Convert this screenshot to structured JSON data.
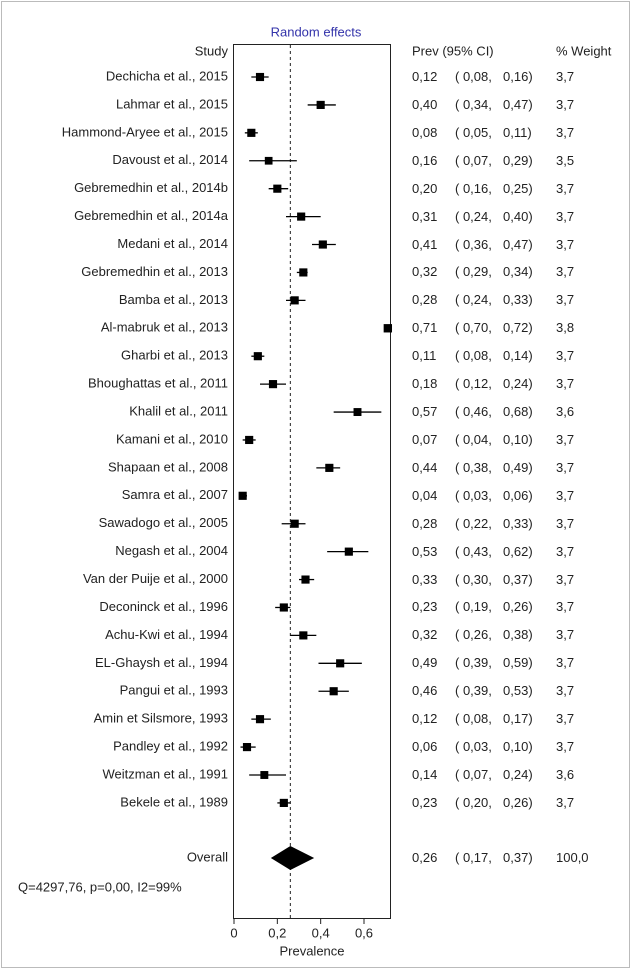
{
  "chart_data": {
    "type": "forest",
    "title": "Random effects",
    "title_color": "#3333aa",
    "study_header": "Study",
    "ci_header": "Prev (95% CI)",
    "weight_header": "% Weight",
    "categories": [
      "Dechicha et al., 2015",
      "Lahmar  et al., 2015",
      "Hammond-Aryee et al., 2015",
      "Davoust et al., 2014",
      "Gebremedhin et al., 2014b",
      "Gebremedhin et al., 2014a",
      "Medani et al., 2014",
      "Gebremedhin et al., 2013",
      "Bamba et al., 2013",
      "Al-mabruk et al., 2013",
      "Gharbi et al., 2013",
      "Bhoughattas et al., 2011",
      "Khalil et al., 2011",
      "Kamani et al., 2010",
      "Shapaan et al., 2008",
      "Samra et al., 2007",
      "Sawadogo et al., 2005",
      "Negash et al., 2004",
      "Van der Puije et al., 2000",
      "Deconinck et al., 1996",
      "Achu-Kwi et al., 1994",
      "EL-Ghaysh et al., 1994",
      "Pangui et al., 1993",
      "Amin et Silsmore, 1993",
      "Pandley et al., 1992",
      "Weitzman et al., 1991",
      "Bekele et al., 1989"
    ],
    "values": [
      0.12,
      0.4,
      0.08,
      0.16,
      0.2,
      0.31,
      0.41,
      0.32,
      0.28,
      0.71,
      0.11,
      0.18,
      0.57,
      0.07,
      0.44,
      0.04,
      0.28,
      0.53,
      0.33,
      0.23,
      0.32,
      0.49,
      0.46,
      0.12,
      0.06,
      0.14,
      0.23
    ],
    "value_labels": [
      "0,12",
      "0,40",
      "0,08",
      "0,16",
      "0,20",
      "0,31",
      "0,41",
      "0,32",
      "0,28",
      "0,71",
      "0,11",
      "0,18",
      "0,57",
      "0,07",
      "0,44",
      "0,04",
      "0,28",
      "0,53",
      "0,33",
      "0,23",
      "0,32",
      "0,49",
      "0,46",
      "0,12",
      "0,06",
      "0,14",
      "0,23"
    ],
    "lower": [
      0.08,
      0.34,
      0.05,
      0.07,
      0.16,
      0.24,
      0.36,
      0.29,
      0.24,
      0.7,
      0.08,
      0.12,
      0.46,
      0.04,
      0.38,
      0.03,
      0.22,
      0.43,
      0.3,
      0.19,
      0.26,
      0.39,
      0.39,
      0.08,
      0.03,
      0.07,
      0.2
    ],
    "lower_labels": [
      "0,08",
      "0,34",
      "0,05",
      "0,07",
      "0,16",
      "0,24",
      "0,36",
      "0,29",
      "0,24",
      "0,70",
      "0,08",
      "0,12",
      "0,46",
      "0,04",
      "0,38",
      "0,03",
      "0,22",
      "0,43",
      "0,30",
      "0,19",
      "0,26",
      "0,39",
      "0,39",
      "0,08",
      "0,03",
      "0,07",
      "0,20"
    ],
    "upper": [
      0.16,
      0.47,
      0.11,
      0.29,
      0.25,
      0.4,
      0.47,
      0.34,
      0.33,
      0.72,
      0.14,
      0.24,
      0.68,
      0.1,
      0.49,
      0.06,
      0.33,
      0.62,
      0.37,
      0.26,
      0.38,
      0.59,
      0.53,
      0.17,
      0.1,
      0.24,
      0.26
    ],
    "upper_labels": [
      "0,16",
      "0,47",
      "0,11",
      "0,29",
      "0,25",
      "0,40",
      "0,47",
      "0,34",
      "0,33",
      "0,72",
      "0,14",
      "0,24",
      "0,68",
      "0,10",
      "0,49",
      "0,06",
      "0,33",
      "0,62",
      "0,37",
      "0,26",
      "0,38",
      "0,59",
      "0,53",
      "0,17",
      "0,10",
      "0,24",
      "0,26"
    ],
    "weights": [
      3.7,
      3.7,
      3.7,
      3.5,
      3.7,
      3.7,
      3.7,
      3.7,
      3.7,
      3.8,
      3.7,
      3.7,
      3.6,
      3.7,
      3.7,
      3.7,
      3.7,
      3.7,
      3.7,
      3.7,
      3.7,
      3.7,
      3.7,
      3.7,
      3.7,
      3.6,
      3.7
    ],
    "weight_labels": [
      "3,7",
      "3,7",
      "3,7",
      "3,5",
      "3,7",
      "3,7",
      "3,7",
      "3,7",
      "3,7",
      "3,8",
      "3,7",
      "3,7",
      "3,6",
      "3,7",
      "3,7",
      "3,7",
      "3,7",
      "3,7",
      "3,7",
      "3,7",
      "3,7",
      "3,7",
      "3,7",
      "3,7",
      "3,7",
      "3,6",
      "3,7"
    ],
    "overall": {
      "label": "Overall",
      "value": 0.26,
      "value_label": "0,26",
      "lower": 0.17,
      "lower_label": "0,17",
      "upper": 0.37,
      "upper_label": "0,37",
      "weight": 100,
      "weight_label": "100,0"
    },
    "stats": "Q=4297,76, p=0,00, I2=99%",
    "xlabel": "Prevalence",
    "xlim": [
      0,
      0.72
    ],
    "xticks": [
      0,
      {
        "value": 0.2,
        "label": "0,2"
      },
      {
        "value": 0.4,
        "label": "0,4"
      },
      {
        "value": 0.6,
        "label": "0,6"
      }
    ],
    "color": "#000000"
  }
}
